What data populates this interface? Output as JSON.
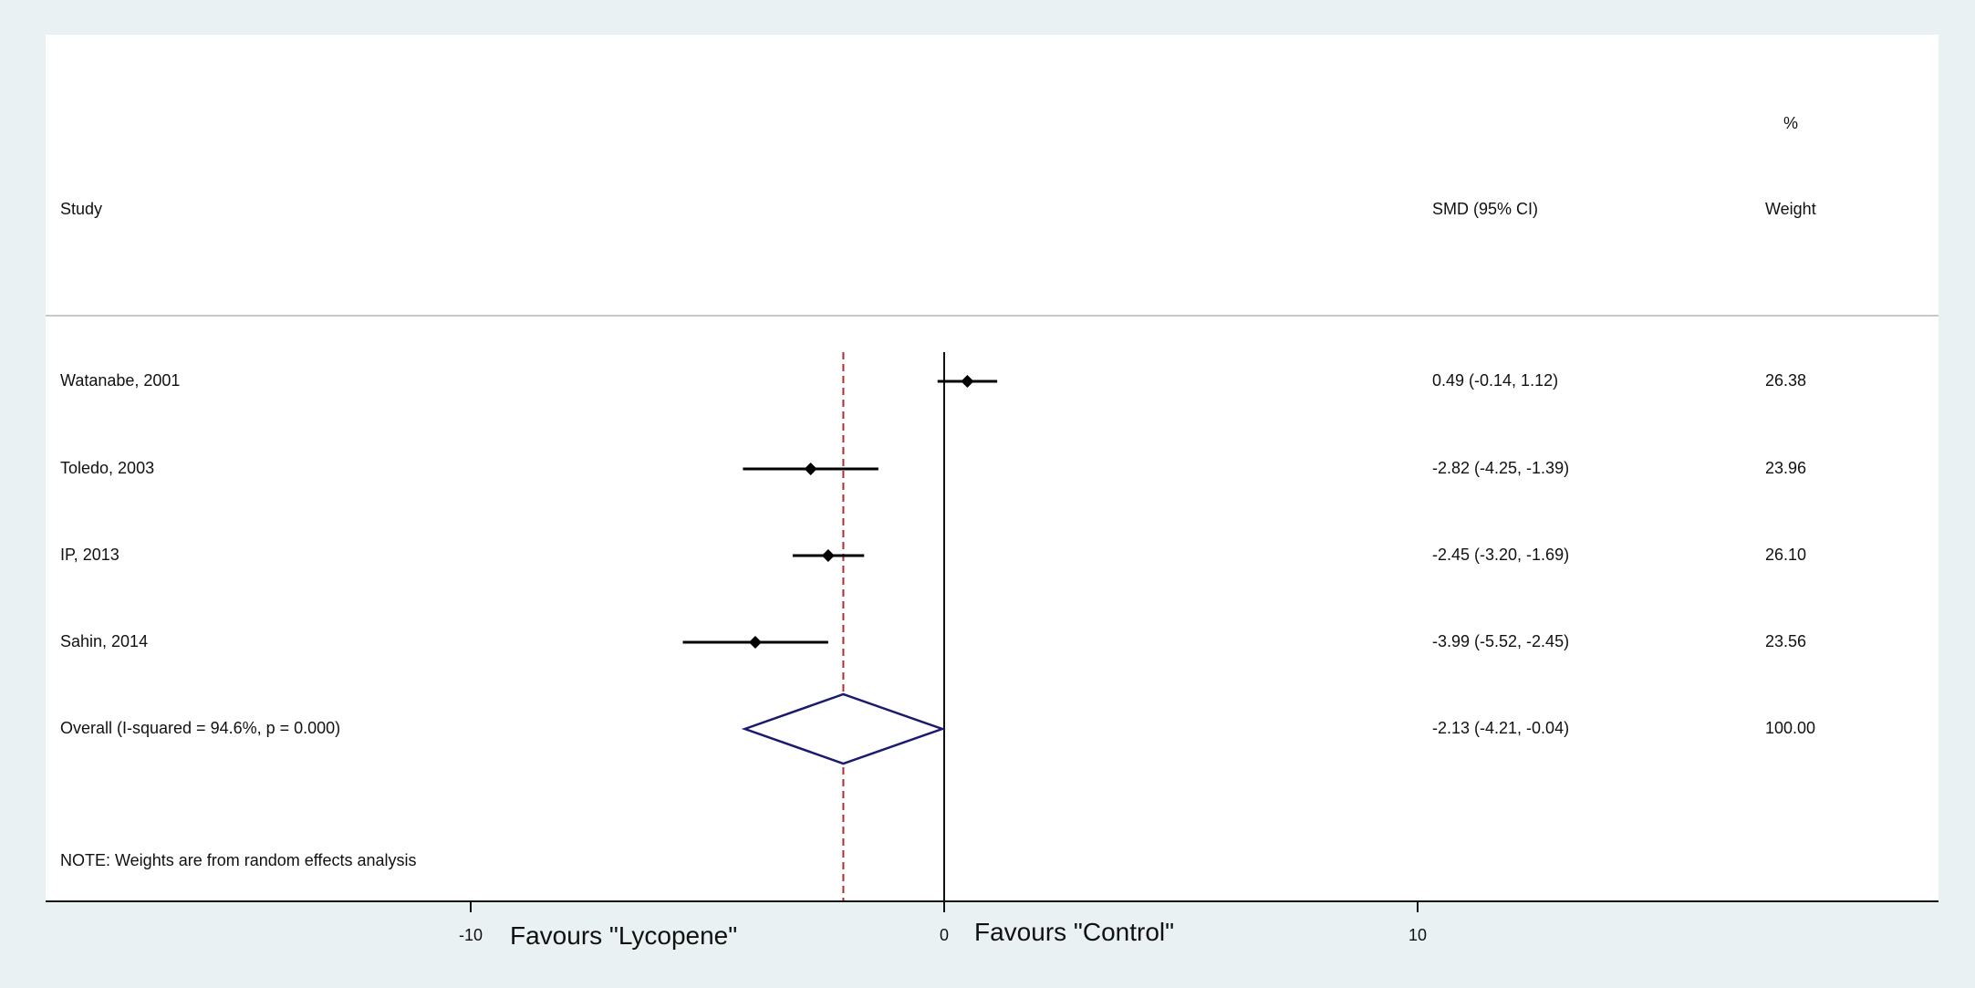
{
  "header": {
    "study_label": "Study",
    "effect_label": "SMD (95% CI)",
    "weight_pct_label": "%",
    "weight_label": "Weight"
  },
  "note": "NOTE: Weights are from random effects analysis",
  "axis": {
    "ticks": [
      {
        "value": -10,
        "label": "-10"
      },
      {
        "value": 0,
        "label": "0"
      },
      {
        "value": 10,
        "label": "10"
      }
    ],
    "favours_left": "Favours \"Lycopene\"",
    "favours_right": "Favours \"Control\""
  },
  "chart_data": {
    "type": "forest",
    "measure": "SMD",
    "xlim": [
      -10,
      10
    ],
    "null_line": 0,
    "overall_line": -2.13,
    "studies": [
      {
        "label": "Watanabe, 2001",
        "smd": 0.49,
        "lo": -0.14,
        "hi": 1.12,
        "ci_text": "0.49 (-0.14, 1.12)",
        "weight": "26.38"
      },
      {
        "label": "Toledo, 2003",
        "smd": -2.82,
        "lo": -4.25,
        "hi": -1.39,
        "ci_text": "-2.82 (-4.25, -1.39)",
        "weight": "23.96"
      },
      {
        "label": "IP, 2013",
        "smd": -2.45,
        "lo": -3.2,
        "hi": -1.69,
        "ci_text": "-2.45 (-3.20, -1.69)",
        "weight": "26.10"
      },
      {
        "label": "Sahin, 2014",
        "smd": -3.99,
        "lo": -5.52,
        "hi": -2.45,
        "ci_text": "-3.99 (-5.52, -2.45)",
        "weight": "23.56"
      }
    ],
    "overall": {
      "label": "Overall  (I-squared = 94.6%, p = 0.000)",
      "smd": -2.13,
      "lo": -4.21,
      "hi": -0.04,
      "ci_text": "-2.13 (-4.21, -0.04)",
      "weight": "100.00"
    },
    "colors": {
      "overall_diamond": "#1a1a6e",
      "overall_line": "#b03030",
      "marks": "#000000"
    }
  }
}
